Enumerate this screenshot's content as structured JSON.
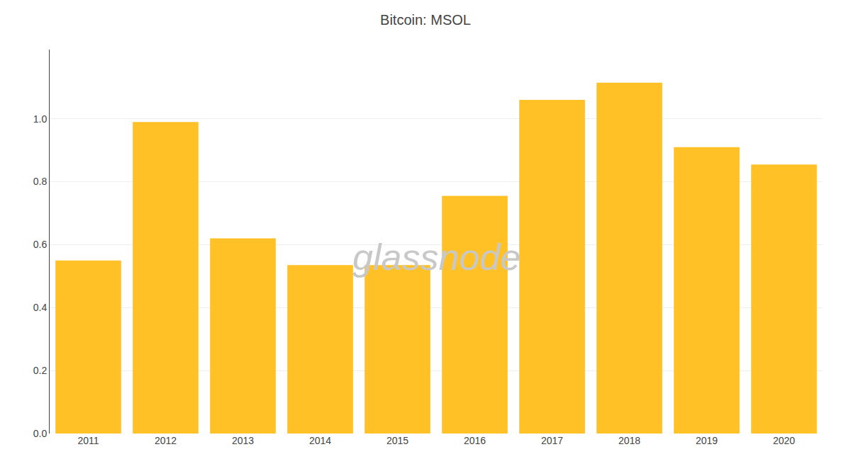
{
  "chart_data": {
    "type": "bar",
    "title": "Bitcoin: MSOL",
    "categories": [
      "2011",
      "2012",
      "2013",
      "2014",
      "2015",
      "2016",
      "2017",
      "2018",
      "2019",
      "2020"
    ],
    "values": [
      0.55,
      0.99,
      0.62,
      0.535,
      0.535,
      0.755,
      1.06,
      1.115,
      0.91,
      0.855
    ],
    "color": "#FFC125",
    "ylim": [
      0,
      1.22
    ],
    "yticks": [
      {
        "value": 0,
        "label": "0.0"
      },
      0.2,
      0.4,
      0.6,
      0.8,
      {
        "value": 1,
        "label": "1.0"
      }
    ],
    "grid": true,
    "annotations": [
      {
        "text": "glassnode",
        "color": "#c8c8c8"
      }
    ]
  }
}
